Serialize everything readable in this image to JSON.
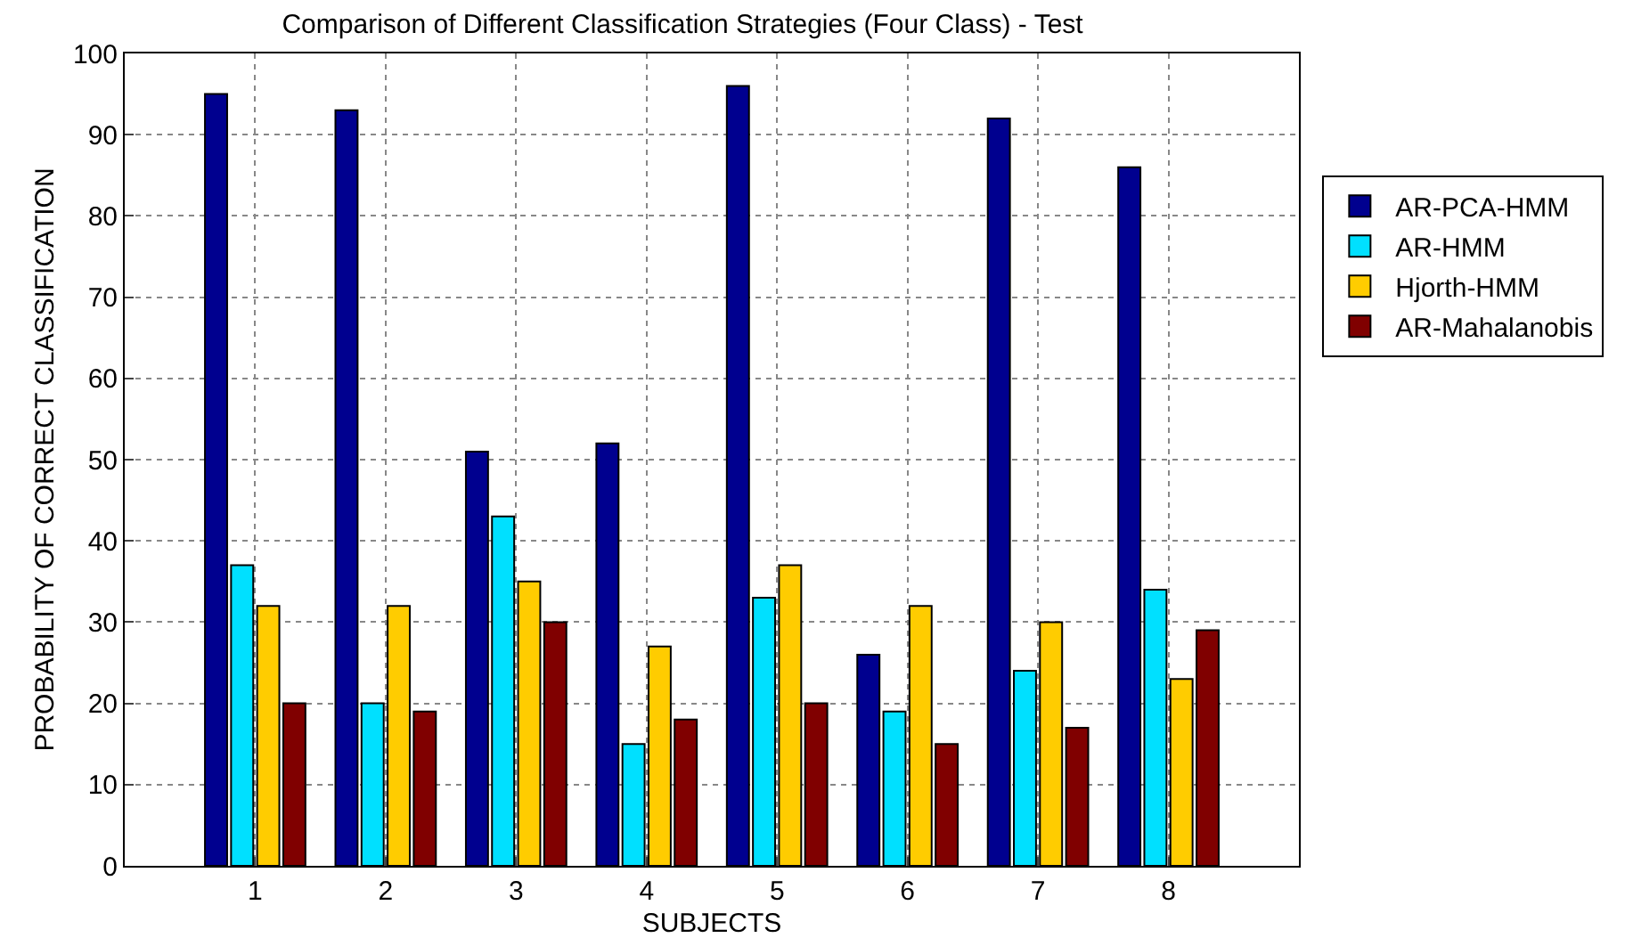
{
  "chart_data": {
    "type": "bar",
    "title": "Comparison of Different Classification Strategies (Four Class) - Test",
    "xlabel": "SUBJECTS",
    "ylabel": "PROBABILITY OF CORRECT CLASSIFICATION",
    "categories": [
      "1",
      "2",
      "3",
      "4",
      "5",
      "6",
      "7",
      "8"
    ],
    "series": [
      {
        "name": "AR-PCA-HMM",
        "color": "#00008f",
        "values": [
          95,
          93,
          51,
          52,
          96,
          26,
          92,
          86
        ]
      },
      {
        "name": "AR-HMM",
        "color": "#00e0ff",
        "values": [
          37,
          20,
          43,
          15,
          33,
          19,
          24,
          34
        ]
      },
      {
        "name": "Hjorth-HMM",
        "color": "#ffcc00",
        "values": [
          32,
          32,
          35,
          27,
          37,
          32,
          30,
          23
        ]
      },
      {
        "name": "AR-Mahalanobis",
        "color": "#800000",
        "values": [
          20,
          19,
          30,
          18,
          20,
          15,
          17,
          29
        ]
      }
    ],
    "ylim": [
      0,
      100
    ],
    "yticks": [
      0,
      10,
      20,
      30,
      40,
      50,
      60,
      70,
      80,
      90,
      100
    ],
    "grid": true,
    "legend": "right"
  }
}
